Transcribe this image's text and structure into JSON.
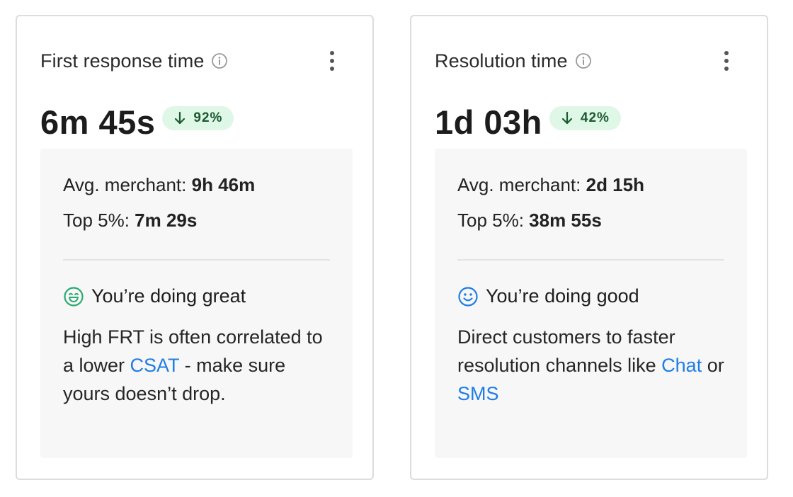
{
  "cards": [
    {
      "title": "First response time",
      "value": "6m 45s",
      "change": "92%",
      "benchmarks": {
        "avg_label": "Avg. merchant: ",
        "avg_value": "9h 46m",
        "top_label": "Top 5%: ",
        "top_value": "7m 29s"
      },
      "status": {
        "icon": "grinning-face-icon",
        "color": "#2eaa72",
        "text": "You’re doing great"
      },
      "advice": {
        "part1": "High FRT is often correlated to a lower ",
        "link1": "CSAT",
        "part2": " - make sure yours doesn’t drop."
      }
    },
    {
      "title": "Resolution time",
      "value": "1d 03h",
      "change": "42%",
      "benchmarks": {
        "avg_label": "Avg. merchant: ",
        "avg_value": "2d 15h",
        "top_label": "Top 5%: ",
        "top_value": "38m 55s"
      },
      "status": {
        "icon": "smiling-face-icon",
        "color": "#1f7de6",
        "text": "You’re doing good"
      },
      "advice": {
        "part1": "Direct customers to faster resolution channels like ",
        "link1": "Chat",
        "part2": " or ",
        "link2": "SMS"
      }
    }
  ],
  "colors": {
    "badge_bg": "#dff7e6",
    "badge_text": "#1d5a33",
    "link": "#1f7de6",
    "panel_bg": "#f7f7f7",
    "border": "#dcdcdc"
  }
}
